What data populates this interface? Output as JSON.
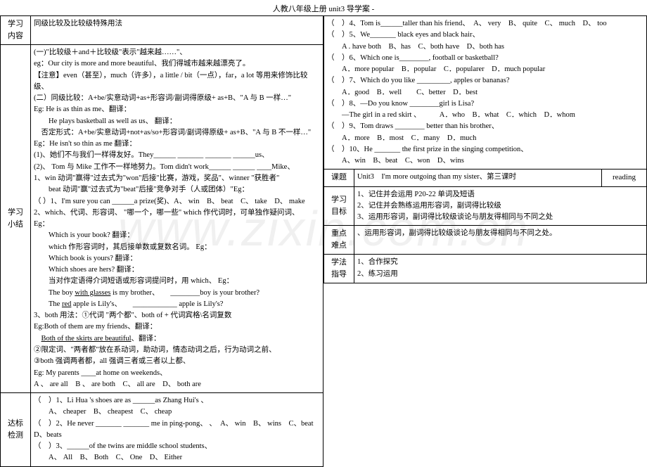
{
  "header": "人教八年级上册 unit3 导学案 -",
  "watermark": "www.zixin.com.cn",
  "left": {
    "row1_label": "学习\n内容",
    "row1_content": "同级比较及比较级特殊用法",
    "row2_label": "学习\n小结",
    "row2_lines": [
      "(一)\"比较级＋and＋比较级\"表示\"越来越……\"、",
      "eg：Our city is more and more beautiful、我们得城市越来越漂亮了。",
      "【注意】even（甚至），much（许多），a little / bit（一点），far，a lot 等用来修饰比较级、",
      "(二）同级比较：A+be/实意动词+as+形容词/副词得原级+ as+B、\"A 与 B 一样…\"",
      "Eg: He is as thin as me、翻译：",
      "　　He plays basketball as well as us、 翻译：",
      "　否定形式：A+be/实意动词+not+as/so+形容词/副词得原级+ as+B、\"A 与 B 不一样…\" Eg：He isn't so thin as me 翻译：",
      "(1)、她们不与我们一样得友好。They______ _______ _______ ______us、",
      "(2)、 Tom 与 Mike 工作不一样地努力。Tom didn't work______ ______ ____Mike、",
      "1、win 动词\"赢得\"过去式为\"won\"后接\"比赛，游戏，奖品\"、winner \"获胜者\"",
      "　　beat 动词\"赢\"过去式为\"beat\"后接\"竞争对手（人或团体）\"Eg：",
      "（ ）1、I'm sure you can ______a prize(奖)、A、 win　B、 beat　C、 take　D、 make",
      "2、which、代词、形容词、 \"哪一个，哪一些\" which 作代词时，可单独作疑问词、",
      "Eg：",
      "　　Which is your book? 翻译：",
      "　　which 作形容词时，其后接单数或复数名词。 Eg：",
      "　　Which book is yours? 翻译：",
      "　　Which shoes are hers? 翻译：",
      "　　当对作定语得介词短语或形容词提问时，用 which、 Eg：",
      "　　The boy {u}with glasses{/u} is my brother、　　________boy is your brother?",
      "　　The {u}red{/u} apple is Lily's、　　____________ apple is Lily's?",
      "3、both 用法：①代词 \"两个都\"、both of + 代词宾格\\名词复数",
      "Eg:Both of them are my friends、翻译：",
      "　{u}Both of the skirts are beautiful{/u}、翻译：",
      "②限定词、\"两者都\"放在系动词，助动词，情态动词之后，行为动词之前、",
      "③both 强调两者都，all 强调三者或三者以上都、",
      "Eg: My parents ____at home on weekends、",
      "A 、 are all　B 、 are both　C、 all are　D、 both are"
    ],
    "row3_label": "达标\n检测",
    "row3_lines": [
      "（　）1、Li Hua 's shoes are as ______as Zhang Hui's 、",
      "　　A、 cheaper　B、 cheapest　C、 cheap",
      "（　）2、He never _______ _______ me in ping-pong、 、　A、 win　B、 wins　C、beat　D、beats",
      "（　）3、______of the twins are middle school students、",
      "　　A、 All　B、 Both　C、 One　D、 Either"
    ]
  },
  "right": {
    "row1_lines": [
      "（　）4、Tom is______taller than his friend、　A、 very　B、 quite　C、 much　D、 too",
      "（　）5、We_______ black eyes and black hair、",
      "　　A . have both　B、has　C、both have　D、both has",
      "（　）6、Which one is________, football or basketball?",
      "　　A．more popular　B．popular　C．popularer　D．much popular",
      "（　）7、Which do you like _________, apples or bananas?",
      "　　A．good　B．well　　C、better　D．best",
      "（　）8、—Do you know ________girl is Lisa?",
      "　　—The girl in a red skirt 、　　　A．who　B．what　C．which　D．whom",
      "（　）9、Tom draws ________ better than his brother、",
      "　　A．more　B．most　C．many　D．much",
      "（　）10、He _______ the first prize in the singing competition、",
      "　　A、win　B、beat　C、won　D、wins"
    ],
    "topic_label": "课题",
    "topic_content": "Unit3　I'm more outgoing than my sister、第三课时",
    "reading": "reading",
    "goal_label": "学习\n目标",
    "goal_lines": [
      "1、记住并会运用 P20-22 单词及短语",
      "2、记住并会熟练运用形容词，副词得比较级",
      "3、运用形容词，副词得比较级谈论与朋友得相同与不同之处"
    ],
    "focus_label": "重点\n难点",
    "focus_content": "、运用形容词，副词得比较级谈论与朋友得相同与不同之处。",
    "method_label": "学法\n指导",
    "method_lines": [
      "1、合作探究",
      "2、练习运用"
    ]
  }
}
